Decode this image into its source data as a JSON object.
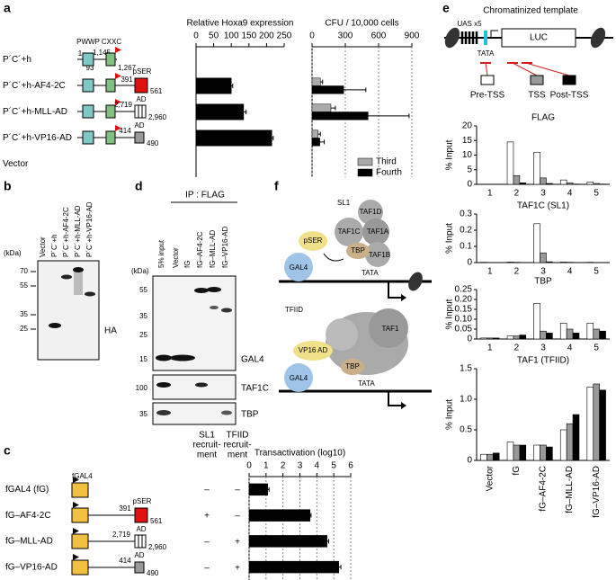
{
  "chart_data": [
    {
      "type": "bar",
      "orientation": "horizontal",
      "title": "Relative Hoxa9 expression",
      "categories": [
        "P´C´+h",
        "P´C´+h-AF4-2C",
        "P´C´+h-MLL-AD",
        "P´C´+h-VP16-AD",
        "Vector"
      ],
      "values": [
        0,
        100,
        135,
        215,
        0
      ],
      "errors": [
        0,
        4,
        7,
        4,
        0
      ],
      "color": "#000000",
      "xlim": [
        0,
        250
      ],
      "xticks": [
        0,
        50,
        100,
        150,
        200,
        250
      ],
      "grid": false
    },
    {
      "type": "bar",
      "orientation": "horizontal",
      "title": "CFU / 10,000 cells",
      "series": [
        {
          "name": "Third",
          "color": "#aaaaaa",
          "values": [
            0,
            75,
            170,
            55,
            0
          ],
          "errors": [
            0,
            20,
            40,
            20,
            0
          ]
        },
        {
          "name": "Fourth",
          "color": "#000000",
          "values": [
            0,
            285,
            505,
            70,
            0
          ],
          "errors": [
            0,
            200,
            370,
            40,
            0
          ]
        }
      ],
      "xlim": [
        0,
        900
      ],
      "xticks": [
        0,
        300,
        600,
        900
      ],
      "grid": true,
      "legend": "lower right"
    },
    {
      "type": "bar",
      "orientation": "horizontal",
      "title": "Transactivation (log10)",
      "categories": [
        "fGAL4 (fG)",
        "fG–AF4-2C",
        "fG–MLL-AD",
        "fG–VP16-AD"
      ],
      "values": [
        1.1,
        3.6,
        4.6,
        5.3
      ],
      "errors": [
        0.08,
        0.06,
        0.1,
        0.12
      ],
      "color": "#000000",
      "xlim": [
        0,
        6
      ],
      "xticks": [
        0,
        1,
        2,
        3,
        4,
        5,
        6
      ],
      "grid": true
    },
    {
      "type": "bar",
      "orientation": "vertical",
      "title": "FLAG",
      "ylabel": "% Input",
      "categories": [
        "1",
        "2",
        "3",
        "4",
        "5"
      ],
      "series": [
        {
          "name": "Pre-TSS",
          "color": "#ffffff",
          "values": [
            0,
            14.5,
            11,
            1.5,
            0.8
          ]
        },
        {
          "name": "TSS",
          "color": "#999999",
          "values": [
            0,
            3,
            2.2,
            0.5,
            0.3
          ]
        },
        {
          "name": "Post-TSS",
          "color": "#000000",
          "values": [
            0,
            0.5,
            0.3,
            0.1,
            0.1
          ]
        }
      ],
      "ylim": [
        0,
        20
      ],
      "yticks": [
        0,
        5,
        10,
        15,
        20
      ]
    },
    {
      "type": "bar",
      "orientation": "vertical",
      "title": "TAF1C (SL1)",
      "ylabel": "% Input",
      "categories": [
        "1",
        "2",
        "3",
        "4",
        "5"
      ],
      "series": [
        {
          "color": "#ffffff",
          "values": [
            0.002,
            0.003,
            0.24,
            0.003,
            0.002
          ]
        },
        {
          "color": "#999999",
          "values": [
            0.001,
            0.002,
            0.06,
            0.002,
            0.001
          ]
        },
        {
          "color": "#000000",
          "values": [
            0.001,
            0.001,
            0.005,
            0.001,
            0.001
          ]
        }
      ],
      "ylim": [
        0,
        0.3
      ],
      "yticks": [
        0,
        0.1,
        0.2,
        0.3
      ]
    },
    {
      "type": "bar",
      "orientation": "vertical",
      "title": "TBP",
      "ylabel": "% Input",
      "categories": [
        "1",
        "2",
        "3",
        "4",
        "5"
      ],
      "series": [
        {
          "color": "#ffffff",
          "values": [
            0.005,
            0.015,
            0.18,
            0.08,
            0.08
          ]
        },
        {
          "color": "#999999",
          "values": [
            0.005,
            0.015,
            0.04,
            0.05,
            0.05
          ]
        },
        {
          "color": "#000000",
          "values": [
            0.005,
            0.02,
            0.03,
            0.03,
            0.04
          ]
        }
      ],
      "ylim": [
        0,
        0.25
      ],
      "yticks": [
        0,
        0.05,
        {
          "value": 0.1,
          "label": "0.10"
        },
        0.15,
        {
          "value": 0.2,
          "label": "0.20"
        },
        0.25
      ]
    },
    {
      "type": "bar",
      "orientation": "vertical",
      "title": "TAF1 (TFIID)",
      "ylabel": "% Input",
      "categories": [
        "Vector",
        "fG",
        "fG–AF4-2C",
        "fG–MLL-AD",
        "fG–VP16-AD"
      ],
      "series": [
        {
          "color": "#ffffff",
          "values": [
            0.1,
            0.3,
            0.25,
            0.5,
            1.2
          ]
        },
        {
          "color": "#999999",
          "values": [
            0.1,
            0.25,
            0.25,
            0.6,
            1.25
          ]
        },
        {
          "color": "#000000",
          "values": [
            0.12,
            0.25,
            0.22,
            0.75,
            1.15
          ]
        }
      ],
      "ylim": [
        0,
        1.5
      ],
      "yticks": [
        0,
        0.5,
        {
          "value": 1,
          "label": "1.0"
        },
        1.5
      ]
    }
  ],
  "panel_a": {
    "label": "a",
    "domains": [
      "PWWP",
      "CXXC"
    ],
    "positions": [
      "1",
      "1,145",
      "93",
      "1,267"
    ],
    "af4": {
      "start": "391",
      "name": "pSER",
      "end": "561"
    },
    "mll": {
      "start": "2,719",
      "name": "AD",
      "end": "2,960"
    },
    "vp16": {
      "start": "414",
      "name": "AD",
      "end": "490"
    }
  },
  "panel_b": {
    "label": "b",
    "lanes": [
      "Vector",
      "P´C´+h",
      "P´C´+h-AF4-2C",
      "P´C´+h-MLL-AD",
      "P´C´+h-VP16-AD"
    ],
    "unit": "(kDa)",
    "markers": [
      "70",
      "55",
      "35",
      "25"
    ],
    "antibody": "HA"
  },
  "panel_c": {
    "label": "c",
    "gal4": "fGAL4",
    "af4": {
      "start": "391",
      "name": "pSER",
      "end": "561"
    },
    "mll": {
      "start": "2,719",
      "name": "AD",
      "end": "2,960"
    },
    "vp16": {
      "start": "414",
      "name": "AD",
      "end": "490"
    },
    "headers": [
      [
        "SL1",
        "recruit-",
        "ment"
      ],
      [
        "TFIID",
        "recruit-",
        "ment"
      ]
    ],
    "recruitment": [
      [
        "–",
        "–"
      ],
      [
        "+",
        "–"
      ],
      [
        "–",
        "+"
      ],
      [
        "–",
        "+"
      ]
    ]
  },
  "panel_d": {
    "label": "d",
    "ip": "IP : FLAG",
    "lanes": [
      "5% input",
      "Vector",
      "fG",
      "fG–AF4-2C",
      "fG–MLL-AD",
      "fG–VP16-AD"
    ],
    "unit": "(kDa)",
    "markers": [
      "55",
      "35",
      "25",
      "15",
      "100",
      "35"
    ],
    "antibodies": [
      "GAL4",
      "TAF1C",
      "TBP"
    ]
  },
  "panel_e": {
    "label": "e",
    "title": "Chromatinized template",
    "uas": "UAS x5",
    "tata": "TATA",
    "gene": "LUC"
  },
  "panel_f": {
    "label": "f",
    "sl1": {
      "title": "SL1",
      "subunits": [
        "TAF1D",
        "TAF1C",
        "TAF1A",
        "TAF1B"
      ],
      "tbp": "TBP",
      "activator": "pSER",
      "gal4": "GAL4",
      "tata": "TATA"
    },
    "tfiid": {
      "title": "TFIID",
      "taf1": "TAF1",
      "activator": "VP16 AD",
      "tbp": "TBP",
      "gal4": "GAL4",
      "tata": "TATA"
    }
  }
}
